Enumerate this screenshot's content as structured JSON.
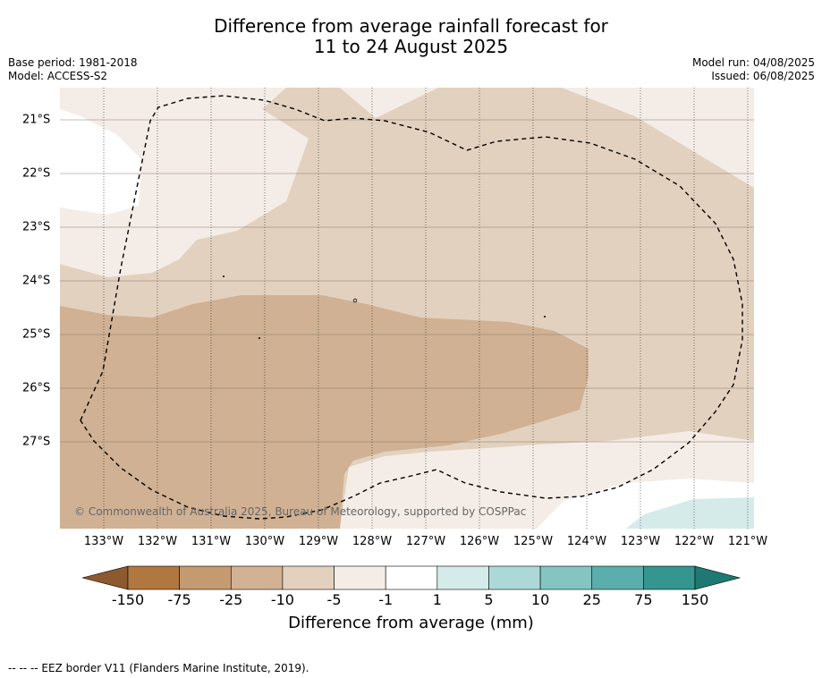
{
  "title": {
    "line1": "Difference from average rainfall forecast for",
    "line2": "11 to 24 August 2025"
  },
  "meta": {
    "base_period": "Base period: 1981-2018",
    "model": "Model: ACCESS-S2",
    "model_run": "Model run: 04/08/2025",
    "issued": "Issued: 06/08/2025"
  },
  "map": {
    "x_ticks": [
      "133°W",
      "132°W",
      "131°W",
      "130°W",
      "129°W",
      "128°W",
      "127°W",
      "126°W",
      "125°W",
      "124°W",
      "123°W",
      "122°W",
      "121°W"
    ],
    "y_ticks": [
      "21°S",
      "22°S",
      "23°S",
      "24°S",
      "25°S",
      "26°S",
      "27°S"
    ],
    "copyright": "© Commonwealth of Australia 2025, Bureau of Meteorology, supported by COSPPac"
  },
  "colorbar": {
    "ticks": [
      "-150",
      "-75",
      "-25",
      "-10",
      "-5",
      "-1",
      "1",
      "5",
      "10",
      "25",
      "75",
      "150"
    ],
    "colors": [
      "#8c5a2e",
      "#b07840",
      "#c49a70",
      "#d2b294",
      "#e3d1bf",
      "#f4ede7",
      "#ffffff",
      "#d5ebea",
      "#acd9d7",
      "#84c4c1",
      "#5aaeab",
      "#35958f",
      "#1f7873"
    ],
    "label": "Difference from average (mm)"
  },
  "footnote": "-- -- -- EEZ border V11 (Flanders Marine Institute, 2019)."
}
